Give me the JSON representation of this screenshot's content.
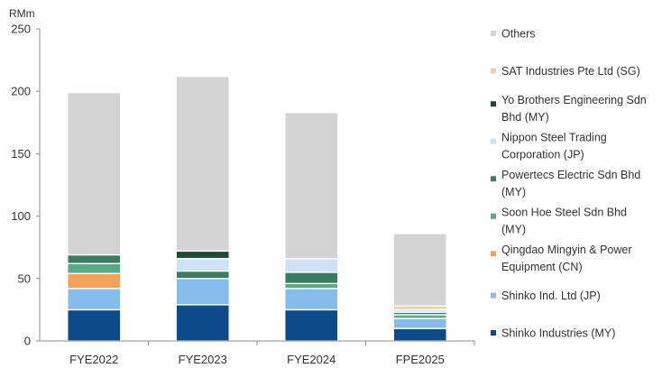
{
  "chart_data": {
    "type": "bar",
    "stacked": true,
    "unit_label": "RMm",
    "categories": [
      "FYE2022",
      "FYE2023",
      "FYE2024",
      "FPE2025"
    ],
    "ylim": [
      0,
      250
    ],
    "yticks": [
      0,
      50,
      100,
      150,
      200,
      250
    ],
    "grid": false,
    "legend_position": "right",
    "series": [
      {
        "name": "Shinko Industries (MY)",
        "color": "#0d4a8a",
        "values": [
          25,
          29,
          25,
          10
        ]
      },
      {
        "name": "Shinko Ind. Ltd (JP)",
        "color": "#86bcec",
        "values": [
          17,
          21,
          17,
          8
        ]
      },
      {
        "name": "Qingdao Mingyin & Power Equipment (CN)",
        "color": "#f3a25a",
        "values": [
          12,
          0,
          0,
          0
        ]
      },
      {
        "name": "Soon Hoe Steel Sdn Bhd (MY)",
        "color": "#5aa888",
        "values": [
          8,
          0,
          4,
          3
        ]
      },
      {
        "name": "Powertecs Electric Sdn Bhd (MY)",
        "color": "#3a7d5e",
        "values": [
          7,
          6,
          9,
          2
        ]
      },
      {
        "name": "Nippon Steel Trading Corporation (JP)",
        "color": "#cfe2f5",
        "values": [
          0,
          10,
          11,
          2
        ]
      },
      {
        "name": "Yo Brothers Engineering Sdn Bhd (MY)",
        "color": "#1e4a36",
        "values": [
          0,
          6,
          0,
          0
        ]
      },
      {
        "name": "SAT Industries Pte Ltd (SG)",
        "color": "#f3cfa8",
        "values": [
          0,
          0,
          0,
          3
        ]
      },
      {
        "name": "Others",
        "color": "#d4d4d4",
        "values": [
          130,
          140,
          117,
          58
        ]
      }
    ]
  }
}
